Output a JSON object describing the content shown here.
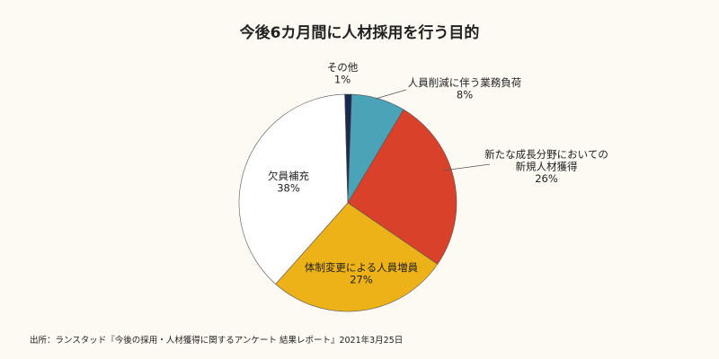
{
  "chart_data": {
    "type": "pie",
    "title": "今後6カ月間に人材採用を行う目的",
    "categories": [
      "人員削減に伴う業務負荷",
      "新たな成長分野においての新規人材獲得",
      "体制変更による人員増員",
      "欠員補充",
      "その他"
    ],
    "values": [
      8,
      26,
      27,
      38,
      1
    ],
    "unit": "%",
    "colors": [
      "#4ba3b8",
      "#d9412b",
      "#eeb219",
      "#ffffff",
      "#1b2a4e"
    ],
    "labels": [
      {
        "lines": [
          "人員削減に伴う業務負荷",
          "8%"
        ]
      },
      {
        "lines": [
          "新たな成長分野においての",
          "新規人材獲得",
          "26%"
        ]
      },
      {
        "lines": [
          "体制変更による人員増員",
          "27%"
        ]
      },
      {
        "lines": [
          "欠員補充",
          "38%"
        ]
      },
      {
        "lines": [
          "その他",
          "1%"
        ]
      }
    ]
  },
  "source": "出所：ランスタッド『今後の採用・人材獲得に関するアンケート 結果レポート』2021年3月25日"
}
